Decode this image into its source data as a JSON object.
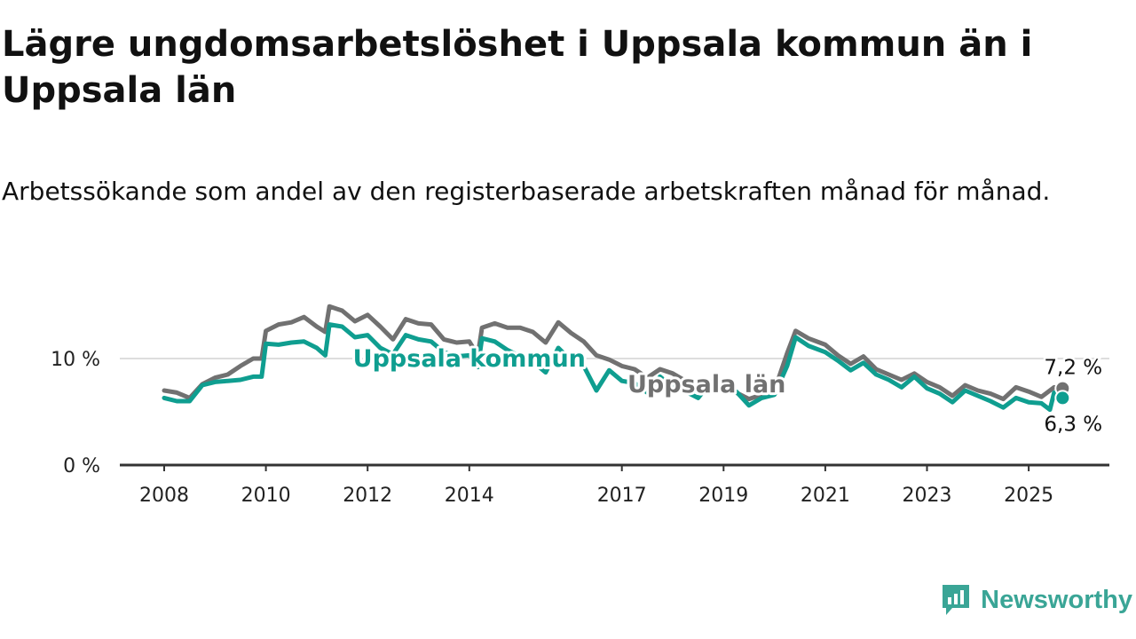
{
  "title": "Lägre ungdomsarbetslöshet i Uppsala kommun än i Uppsala län",
  "subtitle": "Arbetssökande som andel av den registerbaserade arbetskraften månad för månad.",
  "brand": {
    "name": "Newsworthy",
    "icon": "newsworthy-logo-icon",
    "color": "#3aa596"
  },
  "chart_data": {
    "type": "line",
    "title": "Lägre ungdomsarbetslöshet i Uppsala kommun än i Uppsala län",
    "subtitle": "Arbetssökande som andel av den registerbaserade arbetskraften månad för månad.",
    "xlabel": "",
    "ylabel": "",
    "x_ticks": [
      "2008",
      "2010",
      "2012",
      "2014",
      "2017",
      "2019",
      "2021",
      "2023",
      "2025"
    ],
    "y_ticks": [
      "0 %",
      "10 %"
    ],
    "ylim": [
      0,
      17
    ],
    "grid": true,
    "x_range": [
      "2008-01",
      "2025-12"
    ],
    "series": [
      {
        "name": "Uppsala län",
        "color": "#717171",
        "end_label": "7,2 %",
        "points": [
          [
            "2008-01",
            7.0
          ],
          [
            "2008-04",
            6.8
          ],
          [
            "2008-07",
            6.3
          ],
          [
            "2008-10",
            7.6
          ],
          [
            "2009-01",
            8.2
          ],
          [
            "2009-04",
            8.5
          ],
          [
            "2009-07",
            9.3
          ],
          [
            "2009-10",
            10.0
          ],
          [
            "2009-12",
            10.0
          ],
          [
            "2010-01",
            12.6
          ],
          [
            "2010-04",
            13.2
          ],
          [
            "2010-07",
            13.4
          ],
          [
            "2010-10",
            13.9
          ],
          [
            "2011-01",
            13.0
          ],
          [
            "2011-03",
            12.5
          ],
          [
            "2011-04",
            14.9
          ],
          [
            "2011-07",
            14.5
          ],
          [
            "2011-10",
            13.5
          ],
          [
            "2012-01",
            14.1
          ],
          [
            "2012-04",
            13.0
          ],
          [
            "2012-07",
            11.8
          ],
          [
            "2012-10",
            13.7
          ],
          [
            "2013-01",
            13.3
          ],
          [
            "2013-04",
            13.2
          ],
          [
            "2013-07",
            11.8
          ],
          [
            "2013-10",
            11.5
          ],
          [
            "2014-01",
            11.6
          ],
          [
            "2014-03",
            10.3
          ],
          [
            "2014-04",
            12.9
          ],
          [
            "2014-07",
            13.3
          ],
          [
            "2014-10",
            12.9
          ],
          [
            "2015-01",
            12.9
          ],
          [
            "2015-04",
            12.5
          ],
          [
            "2015-07",
            11.5
          ],
          [
            "2015-10",
            13.4
          ],
          [
            "2016-01",
            12.4
          ],
          [
            "2016-04",
            11.6
          ],
          [
            "2016-07",
            10.3
          ],
          [
            "2016-10",
            9.9
          ],
          [
            "2017-01",
            9.3
          ],
          [
            "2017-04",
            9.0
          ],
          [
            "2017-07",
            8.2
          ],
          [
            "2017-10",
            9.0
          ],
          [
            "2018-01",
            8.6
          ],
          [
            "2018-04",
            7.9
          ],
          [
            "2018-07",
            7.3
          ],
          [
            "2018-10",
            7.1
          ],
          [
            "2019-01",
            7.0
          ],
          [
            "2019-04",
            6.8
          ],
          [
            "2019-07",
            6.2
          ],
          [
            "2019-10",
            6.6
          ],
          [
            "2020-01",
            7.0
          ],
          [
            "2020-04",
            10.5
          ],
          [
            "2020-06",
            12.6
          ],
          [
            "2020-09",
            11.9
          ],
          [
            "2021-01",
            11.3
          ],
          [
            "2021-04",
            10.3
          ],
          [
            "2021-07",
            9.5
          ],
          [
            "2021-10",
            10.2
          ],
          [
            "2022-01",
            9.0
          ],
          [
            "2022-04",
            8.5
          ],
          [
            "2022-07",
            8.0
          ],
          [
            "2022-10",
            8.6
          ],
          [
            "2023-01",
            7.8
          ],
          [
            "2023-04",
            7.3
          ],
          [
            "2023-07",
            6.5
          ],
          [
            "2023-10",
            7.5
          ],
          [
            "2024-01",
            7.0
          ],
          [
            "2024-04",
            6.7
          ],
          [
            "2024-07",
            6.2
          ],
          [
            "2024-10",
            7.3
          ],
          [
            "2025-01",
            6.9
          ],
          [
            "2025-04",
            6.4
          ],
          [
            "2025-07",
            7.3
          ],
          [
            "2025-09",
            7.2
          ]
        ]
      },
      {
        "name": "Uppsala kommun",
        "color": "#0f9e90",
        "end_label": "6,3 %",
        "points": [
          [
            "2008-01",
            6.3
          ],
          [
            "2008-04",
            6.0
          ],
          [
            "2008-07",
            6.0
          ],
          [
            "2008-10",
            7.5
          ],
          [
            "2009-01",
            7.8
          ],
          [
            "2009-04",
            7.9
          ],
          [
            "2009-07",
            8.0
          ],
          [
            "2009-10",
            8.3
          ],
          [
            "2009-12",
            8.3
          ],
          [
            "2010-01",
            11.4
          ],
          [
            "2010-04",
            11.3
          ],
          [
            "2010-07",
            11.5
          ],
          [
            "2010-10",
            11.6
          ],
          [
            "2011-01",
            11.0
          ],
          [
            "2011-03",
            10.3
          ],
          [
            "2011-04",
            13.2
          ],
          [
            "2011-07",
            13.0
          ],
          [
            "2011-10",
            12.0
          ],
          [
            "2012-01",
            12.2
          ],
          [
            "2012-04",
            11.0
          ],
          [
            "2012-07",
            10.4
          ],
          [
            "2012-10",
            12.2
          ],
          [
            "2013-01",
            11.8
          ],
          [
            "2013-04",
            11.6
          ],
          [
            "2013-07",
            10.6
          ],
          [
            "2013-10",
            10.2
          ],
          [
            "2014-01",
            10.3
          ],
          [
            "2014-03",
            9.2
          ],
          [
            "2014-04",
            11.9
          ],
          [
            "2014-07",
            11.6
          ],
          [
            "2014-10",
            10.8
          ],
          [
            "2015-01",
            10.2
          ],
          [
            "2015-04",
            9.7
          ],
          [
            "2015-07",
            8.7
          ],
          [
            "2015-10",
            11.0
          ],
          [
            "2016-01",
            9.8
          ],
          [
            "2016-04",
            9.3
          ],
          [
            "2016-07",
            7.0
          ],
          [
            "2016-10",
            8.9
          ],
          [
            "2017-01",
            7.9
          ],
          [
            "2017-04",
            7.7
          ],
          [
            "2017-07",
            6.8
          ],
          [
            "2017-10",
            8.3
          ],
          [
            "2018-01",
            7.3
          ],
          [
            "2018-04",
            6.9
          ],
          [
            "2018-07",
            6.3
          ],
          [
            "2018-10",
            7.8
          ],
          [
            "2019-01",
            7.3
          ],
          [
            "2019-04",
            6.9
          ],
          [
            "2019-07",
            5.6
          ],
          [
            "2019-10",
            6.3
          ],
          [
            "2020-01",
            6.6
          ],
          [
            "2020-04",
            9.3
          ],
          [
            "2020-06",
            12.0
          ],
          [
            "2020-09",
            11.2
          ],
          [
            "2021-01",
            10.6
          ],
          [
            "2021-04",
            9.8
          ],
          [
            "2021-07",
            8.9
          ],
          [
            "2021-10",
            9.6
          ],
          [
            "2022-01",
            8.5
          ],
          [
            "2022-04",
            8.0
          ],
          [
            "2022-07",
            7.3
          ],
          [
            "2022-10",
            8.3
          ],
          [
            "2023-01",
            7.2
          ],
          [
            "2023-04",
            6.7
          ],
          [
            "2023-07",
            5.9
          ],
          [
            "2023-10",
            7.0
          ],
          [
            "2024-01",
            6.5
          ],
          [
            "2024-04",
            6.0
          ],
          [
            "2024-07",
            5.4
          ],
          [
            "2024-10",
            6.3
          ],
          [
            "2025-01",
            5.9
          ],
          [
            "2025-04",
            5.8
          ],
          [
            "2025-06",
            5.2
          ],
          [
            "2025-07",
            6.8
          ],
          [
            "2025-09",
            6.3
          ]
        ]
      }
    ],
    "inline_labels": [
      {
        "text": "Uppsala kommun",
        "series": "Uppsala kommun",
        "x": "2014-01",
        "y": 10.0
      },
      {
        "text": "Uppsala län",
        "series": "Uppsala län",
        "x": "2018-09",
        "y": 7.6
      }
    ]
  }
}
